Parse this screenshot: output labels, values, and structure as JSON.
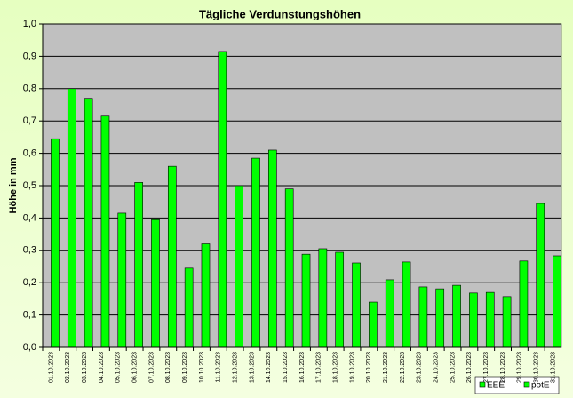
{
  "chart_data": {
    "type": "bar",
    "title": "Tägliche Verdunstungshöhen",
    "y_label": "Höhe in mm",
    "categories": [
      "01.10.2023",
      "02.10.2023",
      "03.10.2023",
      "04.10.2023",
      "05.10.2023",
      "06.10.2023",
      "07.10.2023",
      "08.10.2023",
      "09.10.2023",
      "10.10.2023",
      "11.10.2023",
      "12.10.2023",
      "13.10.2023",
      "14.10.2023",
      "15.10.2023",
      "16.10.2023",
      "17.10.2023",
      "18.10.2023",
      "19.10.2023",
      "20.10.2023",
      "21.10.2023",
      "22.10.2023",
      "23.10.2023",
      "24.10.2023",
      "25.10.2023",
      "26.10.2023",
      "27.10.2023",
      "28.10.2023",
      "29.10.2023",
      "30.10.2023",
      "31.10.2023"
    ],
    "series": [
      {
        "name": "EEE",
        "color": "#00ff00",
        "values": [
          null,
          null,
          null,
          null,
          null,
          null,
          null,
          null,
          null,
          null,
          null,
          null,
          null,
          null,
          null,
          null,
          null,
          null,
          null,
          null,
          null,
          null,
          null,
          null,
          null,
          null,
          null,
          null,
          null,
          null,
          null
        ]
      },
      {
        "name": "potE",
        "color": "#00ff00",
        "values": [
          0.645,
          0.8,
          0.77,
          0.715,
          0.415,
          0.51,
          0.395,
          0.56,
          0.245,
          0.32,
          0.915,
          0.5,
          0.585,
          0.61,
          0.49,
          0.288,
          0.305,
          0.294,
          0.261,
          0.14,
          0.209,
          0.264,
          0.187,
          0.181,
          0.192,
          0.168,
          0.17,
          0.157,
          0.267,
          0.445,
          0.283
        ]
      }
    ],
    "ylim": [
      0,
      1
    ],
    "yticks": [
      {
        "value": 0,
        "label": "0,0"
      },
      {
        "value": 0.1,
        "label": "0,1"
      },
      {
        "value": 0.2,
        "label": "0,2"
      },
      {
        "value": 0.3,
        "label": "0,3"
      },
      {
        "value": 0.4,
        "label": "0,4"
      },
      {
        "value": 0.5,
        "label": "0,5"
      },
      {
        "value": 0.6,
        "label": "0,6"
      },
      {
        "value": 0.7,
        "label": "0,7"
      },
      {
        "value": 0.8,
        "label": "0,8"
      },
      {
        "value": 0.9,
        "label": "0,9"
      },
      {
        "value": 1,
        "label": "1,0"
      }
    ],
    "grid": true,
    "legend": "bottom-right"
  }
}
